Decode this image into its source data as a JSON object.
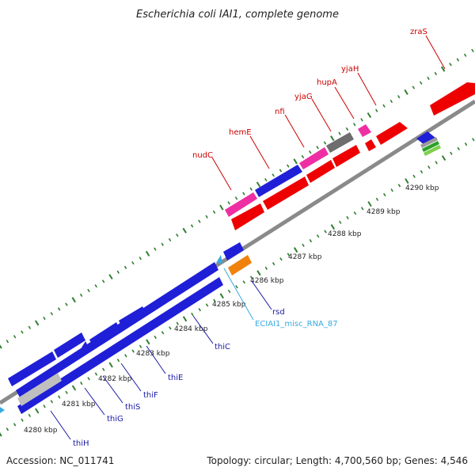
{
  "title": "Escherichia coli IAI1, complete genome",
  "footer": {
    "accession": "Accession: NC_011741",
    "summary": "Topology: circular; Length: 4,700,560 bp; Genes: 4,546"
  },
  "colors": {
    "backbone": "#8a8a8a",
    "tick": "#2f7f2f",
    "forward_red": "#ee0000",
    "blue": "#1f1fd8",
    "magenta": "#ee2ea3",
    "gray": "#6e6e6e",
    "orange": "#f0820c",
    "cyan": "#3aa9e0",
    "red_label": "#cc0000",
    "blue_label": "#1a1aa8",
    "cyan_label": "#3aa9e0"
  },
  "ruler": [
    {
      "label": "4280 kbp"
    },
    {
      "label": "4281 kbp"
    },
    {
      "label": "4282 kbp"
    },
    {
      "label": "4283 kbp"
    },
    {
      "label": "4284 kbp"
    },
    {
      "label": "4285 kbp"
    },
    {
      "label": "4286 kbp"
    },
    {
      "label": "4287 kbp"
    },
    {
      "label": "4288 kbp"
    },
    {
      "label": "4289 kbp"
    },
    {
      "label": "4290 kbp"
    }
  ],
  "genes": [
    {
      "label": "zraS",
      "color": "red"
    },
    {
      "label": "yjaH",
      "color": "red"
    },
    {
      "label": "hupA",
      "color": "red"
    },
    {
      "label": "yjaG",
      "color": "red"
    },
    {
      "label": "nfi",
      "color": "red"
    },
    {
      "label": "hemE",
      "color": "red"
    },
    {
      "label": "nudC",
      "color": "red"
    },
    {
      "label": "rsd",
      "color": "blue"
    },
    {
      "label": "ECIAI1_misc_RNA_87",
      "color": "cyan"
    },
    {
      "label": "thiC",
      "color": "blue"
    },
    {
      "label": "thiE",
      "color": "blue"
    },
    {
      "label": "thiF",
      "color": "blue"
    },
    {
      "label": "thiS",
      "color": "blue"
    },
    {
      "label": "thiG",
      "color": "blue"
    },
    {
      "label": "thiH",
      "color": "blue"
    }
  ]
}
